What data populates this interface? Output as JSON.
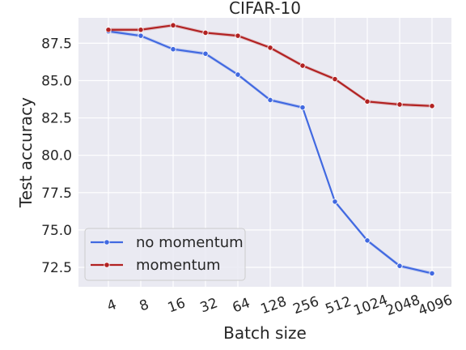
{
  "chart_data": {
    "type": "line",
    "title": "CIFAR-10",
    "xlabel": "Batch size",
    "ylabel": "Test accuracy",
    "categories": [
      "4",
      "8",
      "16",
      "32",
      "64",
      "128",
      "256",
      "512",
      "1024",
      "2048",
      "4096"
    ],
    "yticks": [
      "72.5",
      "75.0",
      "77.5",
      "80.0",
      "82.5",
      "85.0",
      "87.5"
    ],
    "ylim": [
      71.2,
      89.2
    ],
    "grid": true,
    "legend_position": "lower-left",
    "series": [
      {
        "name": "no momentum",
        "color": "#4169e1",
        "values": [
          88.3,
          88.0,
          87.1,
          86.8,
          85.4,
          83.7,
          83.2,
          76.9,
          74.3,
          72.6,
          72.1
        ]
      },
      {
        "name": "momentum",
        "color": "#b22222",
        "values": [
          88.4,
          88.4,
          88.7,
          88.2,
          88.0,
          87.2,
          86.0,
          85.1,
          83.6,
          83.4,
          83.3
        ]
      }
    ]
  }
}
